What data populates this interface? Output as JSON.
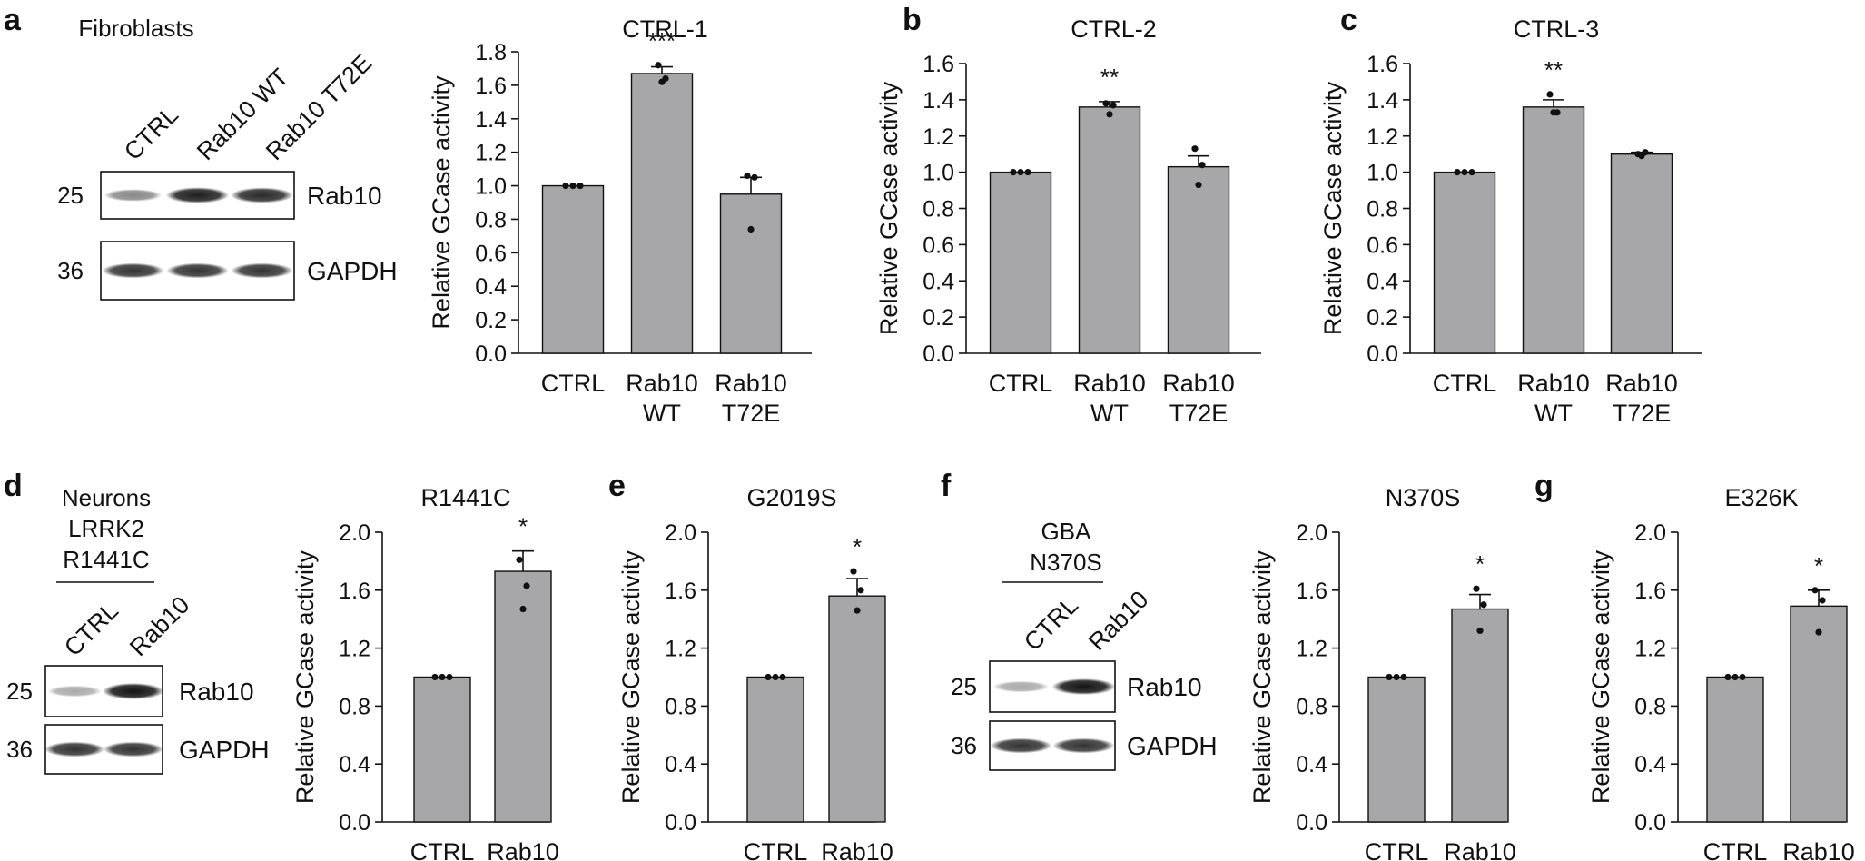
{
  "panel_letters": [
    "a",
    "b",
    "c",
    "d",
    "e",
    "f",
    "g"
  ],
  "blots": [
    {
      "panel": "a",
      "title_lines": [
        "Fibroblasts"
      ],
      "underline": false,
      "lanes": [
        "CTRL",
        "Rab10 WT",
        "Rab10 T72E"
      ],
      "rows": [
        {
          "mw": "25",
          "protein": "Rab10",
          "intensity": [
            0.45,
            0.95,
            0.9
          ]
        },
        {
          "mw": "36",
          "protein": "GAPDH",
          "intensity": [
            0.85,
            0.85,
            0.85
          ]
        }
      ]
    },
    {
      "panel": "d",
      "title_lines": [
        "Neurons",
        "LRRK2",
        "R1441C"
      ],
      "underline": true,
      "lanes": [
        "CTRL",
        "Rab10"
      ],
      "rows": [
        {
          "mw": "25",
          "protein": "Rab10",
          "intensity": [
            0.3,
            1.0
          ]
        },
        {
          "mw": "36",
          "protein": "GAPDH",
          "intensity": [
            0.85,
            0.85
          ]
        }
      ]
    },
    {
      "panel": "f",
      "title_lines": [
        "GBA",
        "N370S"
      ],
      "underline": true,
      "lanes": [
        "CTRL",
        "Rab10"
      ],
      "rows": [
        {
          "mw": "25",
          "protein": "Rab10",
          "intensity": [
            0.3,
            1.0
          ]
        },
        {
          "mw": "36",
          "protein": "GAPDH",
          "intensity": [
            0.85,
            0.85
          ]
        }
      ]
    }
  ],
  "chart_data": [
    {
      "panel": "a",
      "type": "bar",
      "title": "CTRL-1",
      "ylabel": "Relative GCase activity",
      "xlabel": "",
      "categories": [
        [
          "CTRL"
        ],
        [
          "Rab10",
          "WT"
        ],
        [
          "Rab10",
          "T72E"
        ]
      ],
      "values": [
        1.0,
        1.67,
        0.95
      ],
      "errors": [
        0.0,
        0.04,
        0.1
      ],
      "points": [
        [
          1.0,
          1.0,
          1.0
        ],
        [
          1.72,
          1.64,
          1.62
        ],
        [
          1.06,
          1.05,
          0.74
        ]
      ],
      "significance": [
        "",
        "***",
        ""
      ],
      "ylim": [
        0,
        1.8
      ],
      "yticks": [
        "0.0",
        "0.2",
        "0.4",
        "0.6",
        "0.8",
        "1.0",
        "1.2",
        "1.4",
        "1.6",
        "1.8"
      ]
    },
    {
      "panel": "b",
      "type": "bar",
      "title": "CTRL-2",
      "ylabel": "Relative GCase activity",
      "xlabel": "",
      "categories": [
        [
          "CTRL"
        ],
        [
          "Rab10",
          "WT"
        ],
        [
          "Rab10",
          "T72E"
        ]
      ],
      "values": [
        1.0,
        1.36,
        1.03
      ],
      "errors": [
        0.0,
        0.03,
        0.06
      ],
      "points": [
        [
          1.0,
          1.0,
          1.0
        ],
        [
          1.38,
          1.37,
          1.32
        ],
        [
          1.13,
          1.04,
          0.93
        ]
      ],
      "significance": [
        "",
        "**",
        ""
      ],
      "ylim": [
        0,
        1.6
      ],
      "yticks": [
        "0.0",
        "0.2",
        "0.4",
        "0.6",
        "0.8",
        "1.0",
        "1.2",
        "1.4",
        "1.6"
      ]
    },
    {
      "panel": "c",
      "type": "bar",
      "title": "CTRL-3",
      "ylabel": "Relative GCase activity",
      "xlabel": "",
      "categories": [
        [
          "CTRL"
        ],
        [
          "Rab10",
          "WT"
        ],
        [
          "Rab10",
          "T72E"
        ]
      ],
      "values": [
        1.0,
        1.36,
        1.1
      ],
      "errors": [
        0.0,
        0.04,
        0.01
      ],
      "points": [
        [
          1.0,
          1.0,
          1.0
        ],
        [
          1.43,
          1.33,
          1.33
        ],
        [
          1.1,
          1.11,
          1.09
        ]
      ],
      "significance": [
        "",
        "**",
        ""
      ],
      "ylim": [
        0,
        1.6
      ],
      "yticks": [
        "0.0",
        "0.2",
        "0.4",
        "0.6",
        "0.8",
        "1.0",
        "1.2",
        "1.4",
        "1.6"
      ]
    },
    {
      "panel": "d",
      "type": "bar",
      "title": "R1441C",
      "ylabel": "Relative GCase activity",
      "xlabel": "",
      "categories": [
        [
          "CTRL"
        ],
        [
          "Rab10"
        ]
      ],
      "values": [
        1.0,
        1.73
      ],
      "errors": [
        0.0,
        0.14
      ],
      "points": [
        [
          1.0,
          1.0,
          1.0
        ],
        [
          1.81,
          1.63,
          1.47
        ]
      ],
      "significance": [
        "",
        "*"
      ],
      "ylim": [
        0,
        2.0
      ],
      "yticks": [
        "0.0",
        "0.4",
        "0.8",
        "1.2",
        "1.6",
        "2.0"
      ]
    },
    {
      "panel": "e",
      "type": "bar",
      "title": "G2019S",
      "ylabel": "Relative GCase activity",
      "xlabel": "",
      "categories": [
        [
          "CTRL"
        ],
        [
          "Rab10"
        ]
      ],
      "values": [
        1.0,
        1.56
      ],
      "errors": [
        0.0,
        0.12
      ],
      "points": [
        [
          1.0,
          1.0,
          1.0
        ],
        [
          1.73,
          1.6,
          1.46
        ]
      ],
      "significance": [
        "",
        "*"
      ],
      "ylim": [
        0,
        2.0
      ],
      "yticks": [
        "0.0",
        "0.4",
        "0.8",
        "1.2",
        "1.6",
        "2.0"
      ]
    },
    {
      "panel": "f",
      "type": "bar",
      "title": "N370S",
      "ylabel": "Relative GCase activity",
      "xlabel": "",
      "categories": [
        [
          "CTRL"
        ],
        [
          "Rab10"
        ]
      ],
      "values": [
        1.0,
        1.47
      ],
      "errors": [
        0.0,
        0.1
      ],
      "points": [
        [
          1.0,
          1.0,
          1.0
        ],
        [
          1.61,
          1.5,
          1.32
        ]
      ],
      "significance": [
        "",
        "*"
      ],
      "ylim": [
        0,
        2.0
      ],
      "yticks": [
        "0.0",
        "0.4",
        "0.8",
        "1.2",
        "1.6",
        "2.0"
      ]
    },
    {
      "panel": "g",
      "type": "bar",
      "title": "E326K",
      "ylabel": "Relative GCase activity",
      "xlabel": "",
      "categories": [
        [
          "CTRL"
        ],
        [
          "Rab10"
        ]
      ],
      "values": [
        1.0,
        1.49
      ],
      "errors": [
        0.0,
        0.11
      ],
      "points": [
        [
          1.0,
          1.0,
          1.0
        ],
        [
          1.6,
          1.53,
          1.31
        ]
      ],
      "significance": [
        "",
        "*"
      ],
      "ylim": [
        0,
        2.0
      ],
      "yticks": [
        "0.0",
        "0.4",
        "0.8",
        "1.2",
        "1.6",
        "2.0"
      ]
    }
  ],
  "colors": {
    "bar_fill": "#a7a7a9",
    "ink": "#111111"
  }
}
